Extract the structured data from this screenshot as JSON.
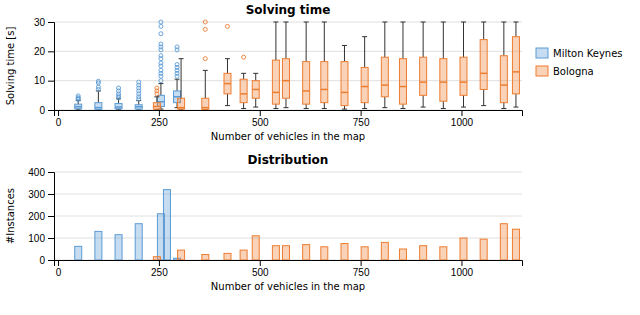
{
  "chart_data": [
    {
      "type": "box",
      "title": "Solving time",
      "xlabel": "Number of vehicles in the map",
      "ylabel": "Solving time [s]",
      "xlim": [
        -10,
        1150
      ],
      "xticks": [
        0,
        250,
        500,
        750,
        1000
      ],
      "ylim": [
        0,
        30
      ],
      "yticks": [
        0,
        10,
        20,
        30
      ],
      "grid": true,
      "legend": "right",
      "series": [
        {
          "name": "Milton Keynes",
          "color": "#5b9bd5",
          "x": [
            50,
            100,
            150,
            200,
            255,
            295
          ],
          "q1": [
            0.4,
            0.2,
            0.4,
            0.3,
            1.2,
            2.5
          ],
          "med": [
            1.1,
            0.8,
            1.0,
            1.1,
            2.8,
            4.5
          ],
          "q3": [
            2.0,
            2.5,
            2.2,
            1.8,
            5.0,
            6.5
          ],
          "whislo": [
            0.05,
            0.05,
            0.05,
            0.05,
            0.3,
            0.8
          ],
          "whishi": [
            3.2,
            6.5,
            3.8,
            3.2,
            9.0,
            10.5
          ],
          "fliers": [
            [
              3.6,
              3.9,
              4.2,
              4.8
            ],
            [
              7.0,
              7.8,
              9.2,
              9.8
            ],
            [
              4.2,
              4.8,
              5.5,
              6.5,
              7.5
            ],
            [
              3.8,
              4.5,
              5.5,
              6.5,
              7.5,
              8.5,
              9.5
            ],
            [
              10.0,
              11.5,
              12.5,
              13.5,
              15.0,
              16.0,
              17.5,
              18.5,
              20.5,
              21.5,
              22.5,
              26.0,
              28.5,
              30.0
            ],
            [
              11.5,
              12.5,
              13.5,
              14.5,
              15.5,
              20.5,
              21.5
            ]
          ]
        },
        {
          "name": "Bologna",
          "color": "#ed7d31",
          "x": [
            245,
            305,
            365,
            420,
            460,
            490,
            540,
            565,
            615,
            660,
            710,
            760,
            810,
            855,
            905,
            955,
            1005,
            1055,
            1105,
            1135
          ],
          "q1": [
            0.3,
            0.3,
            0.2,
            5.5,
            2.5,
            4.0,
            2.0,
            4.0,
            2.0,
            2.5,
            1.5,
            2.5,
            4.5,
            2.0,
            5.0,
            3.0,
            5.0,
            7.0,
            2.5,
            5.5
          ],
          "med": [
            1.2,
            0.8,
            0.8,
            9.0,
            5.5,
            7.0,
            6.0,
            10.0,
            6.5,
            7.0,
            6.0,
            8.0,
            8.5,
            8.0,
            9.5,
            9.5,
            9.5,
            12.5,
            8.5,
            13.0
          ],
          "q3": [
            2.5,
            4.0,
            4.0,
            12.5,
            10.5,
            10.0,
            17.0,
            17.5,
            16.5,
            16.5,
            16.5,
            14.5,
            18.0,
            17.5,
            18.0,
            17.5,
            18.0,
            24.0,
            18.5,
            25.0
          ],
          "whislo": [
            0.05,
            0.05,
            0.05,
            1.5,
            0.5,
            1.0,
            0.5,
            0.8,
            0.5,
            0.5,
            0.3,
            0.5,
            0.8,
            0.5,
            1.0,
            0.5,
            1.0,
            1.5,
            0.5,
            1.0
          ],
          "whishi": [
            4.5,
            17.5,
            13.5,
            17.5,
            12.5,
            12.5,
            30.0,
            30.0,
            30.0,
            30.0,
            22.0,
            25.0,
            30.0,
            30.0,
            30.0,
            30.0,
            30.0,
            30.0,
            30.0,
            30.0
          ],
          "fliers": [
            [
              5.5,
              6.5,
              7.5
            ],
            [],
            [
              17.5,
              27.5,
              30.0
            ],
            [
              28.5
            ],
            [
              18.0
            ],
            [],
            [],
            [],
            [],
            [],
            [],
            [],
            [],
            [],
            [],
            [],
            [],
            [],
            [],
            []
          ]
        }
      ]
    },
    {
      "type": "bar",
      "title": "Distribution",
      "xlabel": "Number of vehicles in the map",
      "ylabel": "#Instances",
      "xlim": [
        -10,
        1150
      ],
      "xticks": [
        0,
        250,
        500,
        750,
        1000
      ],
      "ylim": [
        0,
        400
      ],
      "yticks": [
        0,
        100,
        200,
        300,
        400
      ],
      "grid": true,
      "series": [
        {
          "color": "#5b9bd5",
          "x": [
            50,
            100,
            150,
            200,
            255,
            270,
            295
          ],
          "values": [
            62,
            130,
            115,
            165,
            210,
            320,
            8
          ]
        },
        {
          "color": "#ed7d31",
          "x": [
            245,
            305,
            365,
            420,
            460,
            490,
            540,
            565,
            615,
            660,
            710,
            760,
            810,
            855,
            905,
            955,
            1005,
            1055,
            1105,
            1135
          ],
          "values": [
            15,
            45,
            25,
            30,
            45,
            110,
            65,
            65,
            70,
            60,
            75,
            60,
            80,
            50,
            65,
            60,
            100,
            95,
            165,
            140
          ]
        }
      ]
    }
  ]
}
